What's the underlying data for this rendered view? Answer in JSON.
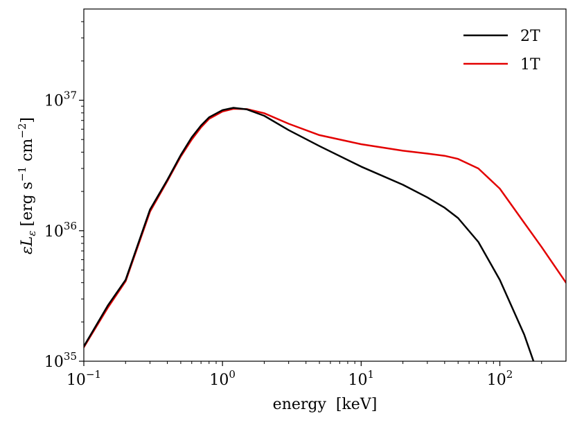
{
  "chart_data": {
    "type": "line",
    "title": "",
    "xlabel": "energy  [keV]",
    "ylabel": "εL_ε [erg s⁻¹ cm⁻²]",
    "ylabel_parts": {
      "main": "εL",
      "sub": "ε",
      "units": "[erg s",
      "exp1": "−1",
      "mid": " cm",
      "exp2": "−2",
      "close": "]"
    },
    "xscale": "log",
    "yscale": "log",
    "xlim": [
      0.1,
      300
    ],
    "ylim": [
      1e+35,
      5e+37
    ],
    "xticks": [
      {
        "value": 0.1,
        "base": "10",
        "exp": "−1"
      },
      {
        "value": 1,
        "base": "10",
        "exp": "0"
      },
      {
        "value": 10,
        "base": "10",
        "exp": "1"
      },
      {
        "value": 100,
        "base": "10",
        "exp": "2"
      }
    ],
    "yticks": [
      {
        "value": 1e+35,
        "base": "10",
        "exp": "35"
      },
      {
        "value": 1e+36,
        "base": "10",
        "exp": "36"
      },
      {
        "value": 1e+37,
        "base": "10",
        "exp": "37"
      }
    ],
    "legend_position": "top-right",
    "series": [
      {
        "name": "2T",
        "color": "#000000",
        "x": [
          0.1,
          0.15,
          0.2,
          0.3,
          0.4,
          0.5,
          0.6,
          0.7,
          0.8,
          1.0,
          1.2,
          1.5,
          2.0,
          3.0,
          5.0,
          10,
          20,
          30,
          40,
          50,
          70,
          100,
          150,
          175
        ],
        "y": [
          1.3e+35,
          2.7e+35,
          4.2e+35,
          1.45e+36,
          2.45e+36,
          3.8e+36,
          5.2e+36,
          6.4e+36,
          7.4e+36,
          8.4e+36,
          8.75e+36,
          8.5e+36,
          7.6e+36,
          5.9e+36,
          4.45e+36,
          3.1e+36,
          2.25e+36,
          1.8e+36,
          1.5e+36,
          1.25e+36,
          8.2e+35,
          4.2e+35,
          1.6e+35,
          1e+35
        ]
      },
      {
        "name": "1T",
        "color": "#e30000",
        "x": [
          0.1,
          0.15,
          0.2,
          0.3,
          0.4,
          0.5,
          0.6,
          0.7,
          0.8,
          1.0,
          1.2,
          1.5,
          2.0,
          3.0,
          5.0,
          10,
          20,
          30,
          40,
          50,
          70,
          100,
          150,
          200,
          300
        ],
        "y": [
          1.28e+35,
          2.6e+35,
          4.1e+35,
          1.4e+36,
          2.4e+36,
          3.7e+36,
          5e+36,
          6.2e+36,
          7.2e+36,
          8.2e+36,
          8.6e+36,
          8.55e+36,
          7.95e+36,
          6.6e+36,
          5.4e+36,
          4.6e+36,
          4.1e+36,
          3.9e+36,
          3.75e+36,
          3.55e+36,
          3e+36,
          2.1e+36,
          1.15e+36,
          7.5e+35,
          4e+35
        ]
      }
    ]
  }
}
